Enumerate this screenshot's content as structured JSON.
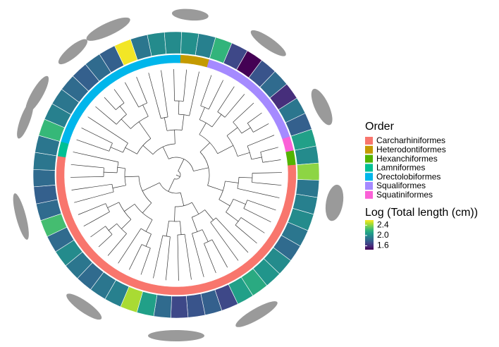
{
  "order_legend": {
    "title": "Order",
    "items": [
      {
        "name": "Carcharhiniformes",
        "color": "#F8766D"
      },
      {
        "name": "Heterodontiformes",
        "color": "#C49A00"
      },
      {
        "name": "Hexanchiformes",
        "color": "#53B400"
      },
      {
        "name": "Lamniformes",
        "color": "#00C094"
      },
      {
        "name": "Orectolobiformes",
        "color": "#00B6EB"
      },
      {
        "name": "Squaliformes",
        "color": "#A58AFF"
      },
      {
        "name": "Squatiniformes",
        "color": "#FB61D7"
      }
    ]
  },
  "colorbar": {
    "title": "Log (Total length (cm))",
    "colormap": "viridis",
    "lim": [
      1.45,
      2.6
    ],
    "ticks": [
      2.4,
      {
        "value": 2,
        "label": "2.0"
      },
      1.6
    ]
  },
  "tips": {
    "orders": [
      "Orectolobiformes",
      "Orectolobiformes",
      "Orectolobiformes",
      "Orectolobiformes",
      "Orectolobiformes",
      "Orectolobiformes",
      "Orectolobiformes",
      "Orectolobiformes",
      "Orectolobiformes",
      "Orectolobiformes",
      "Orectolobiformes",
      "Heterodontiformes",
      "Heterodontiformes",
      "Squaliformes",
      "Squaliformes",
      "Squaliformes",
      "Squaliformes",
      "Squaliformes",
      "Squaliformes",
      "Squaliformes",
      "Squaliformes",
      "Squatiniformes",
      "Hexanchiformes",
      "Carcharhiniformes",
      "Carcharhiniformes",
      "Carcharhiniformes",
      "Carcharhiniformes",
      "Carcharhiniformes",
      "Carcharhiniformes",
      "Carcharhiniformes",
      "Carcharhiniformes",
      "Carcharhiniformes",
      "Carcharhiniformes",
      "Carcharhiniformes",
      "Carcharhiniformes",
      "Carcharhiniformes",
      "Carcharhiniformes",
      "Carcharhiniformes",
      "Carcharhiniformes",
      "Carcharhiniformes",
      "Carcharhiniformes",
      "Carcharhiniformes",
      "Carcharhiniformes",
      "Carcharhiniformes",
      "Carcharhiniformes",
      "Carcharhiniformes",
      "Carcharhiniformes",
      "Carcharhiniformes",
      "Carcharhiniformes",
      "Carcharhiniformes",
      "Carcharhiniformes",
      "Lamniformes"
    ],
    "values": [
      2.22,
      1.95,
      1.9,
      1.85,
      1.8,
      1.85,
      1.8,
      2.58,
      1.9,
      2.0,
      2.0,
      2.02,
      1.95,
      2.2,
      1.7,
      1.45,
      1.75,
      1.85,
      1.6,
      1.9,
      1.8,
      2.1,
      2.0,
      2.4,
      1.9,
      1.95,
      2.0,
      1.9,
      1.85,
      2.0,
      2.05,
      2.15,
      2.1,
      1.7,
      1.8,
      1.75,
      1.7,
      1.85,
      2.1,
      2.45,
      1.95,
      1.9,
      1.85,
      1.9,
      2.0,
      1.85,
      2.25,
      1.85,
      1.8,
      1.85,
      1.9,
      1.9
    ]
  }
}
